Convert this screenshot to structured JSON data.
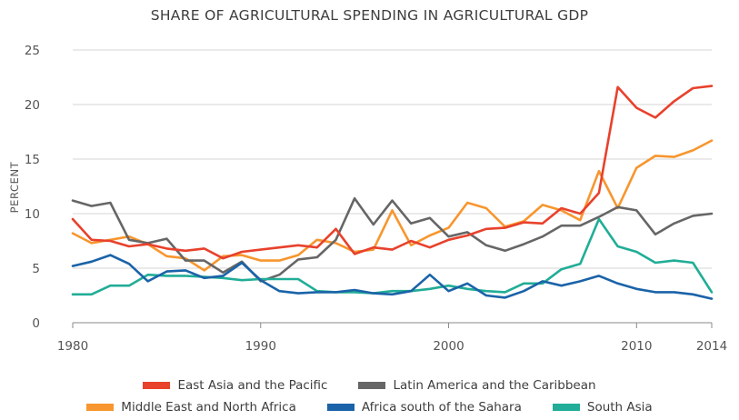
{
  "chart_data": {
    "type": "line",
    "title": "SHARE OF AGRICULTURAL SPENDING IN AGRICULTURAL GDP",
    "xlabel": "",
    "ylabel": "PERCENT",
    "xlim": [
      1980,
      2014
    ],
    "ylim": [
      0,
      25
    ],
    "x_ticks": [
      1980,
      1990,
      2000,
      2010,
      2014
    ],
    "y_ticks": [
      0,
      5,
      10,
      15,
      20,
      25
    ],
    "grid": "horizontal",
    "legend_position": "bottom",
    "x": [
      1980,
      1981,
      1982,
      1983,
      1984,
      1985,
      1986,
      1987,
      1988,
      1989,
      1990,
      1991,
      1992,
      1993,
      1994,
      1995,
      1996,
      1997,
      1998,
      1999,
      2000,
      2001,
      2002,
      2003,
      2004,
      2005,
      2006,
      2007,
      2008,
      2009,
      2010,
      2011,
      2012,
      2013,
      2014
    ],
    "series": [
      {
        "name": "East Asia and the Pacific",
        "color": "#e8412c",
        "values": [
          9.5,
          7.6,
          7.5,
          7.0,
          7.2,
          6.8,
          6.6,
          6.8,
          5.9,
          6.5,
          6.7,
          6.9,
          7.1,
          6.9,
          8.6,
          6.3,
          6.9,
          6.7,
          7.5,
          6.9,
          7.6,
          8.0,
          8.6,
          8.7,
          9.2,
          9.1,
          10.5,
          10.0,
          11.9,
          21.6,
          19.7,
          18.8,
          20.3,
          21.5,
          21.7
        ]
      },
      {
        "name": "Latin America and the Caribbean",
        "color": "#666666",
        "values": [
          11.2,
          10.7,
          11.0,
          7.6,
          7.3,
          7.7,
          5.7,
          5.7,
          4.6,
          5.6,
          3.8,
          4.4,
          5.8,
          6.0,
          7.6,
          11.4,
          9.0,
          11.2,
          9.1,
          9.6,
          7.9,
          8.3,
          7.1,
          6.6,
          7.2,
          7.9,
          8.9,
          8.9,
          9.7,
          10.6,
          10.3,
          8.1,
          9.1,
          9.8,
          10.0
        ]
      },
      {
        "name": "Middle East and North Africa",
        "color": "#f7962e",
        "values": [
          8.2,
          7.3,
          7.6,
          7.9,
          7.2,
          6.1,
          5.9,
          4.8,
          6.1,
          6.2,
          5.7,
          5.7,
          6.2,
          7.6,
          7.3,
          6.5,
          6.7,
          10.3,
          7.1,
          8.0,
          8.7,
          11.0,
          10.5,
          8.8,
          9.3,
          10.8,
          10.3,
          9.4,
          13.9,
          10.5,
          14.2,
          15.3,
          15.2,
          15.8,
          16.7
        ]
      },
      {
        "name": "Africa south of the Sahara",
        "color": "#1a63a8",
        "values": [
          5.2,
          5.6,
          6.2,
          5.4,
          3.8,
          4.7,
          4.8,
          4.1,
          4.3,
          5.5,
          3.9,
          2.9,
          2.7,
          2.8,
          2.8,
          3.0,
          2.7,
          2.6,
          2.9,
          4.4,
          2.9,
          3.6,
          2.5,
          2.3,
          2.9,
          3.8,
          3.4,
          3.8,
          4.3,
          3.6,
          3.1,
          2.8,
          2.8,
          2.6,
          2.2
        ]
      },
      {
        "name": "South Asia",
        "color": "#21ad97",
        "values": [
          2.6,
          2.6,
          3.4,
          3.4,
          4.4,
          4.3,
          4.3,
          4.2,
          4.1,
          3.9,
          4.0,
          4.0,
          4.0,
          2.9,
          2.8,
          2.8,
          2.7,
          2.9,
          2.9,
          3.1,
          3.4,
          3.1,
          2.9,
          2.8,
          3.6,
          3.6,
          4.9,
          5.4,
          9.5,
          7.0,
          6.5,
          5.5,
          5.7,
          5.5,
          2.8
        ]
      }
    ]
  }
}
